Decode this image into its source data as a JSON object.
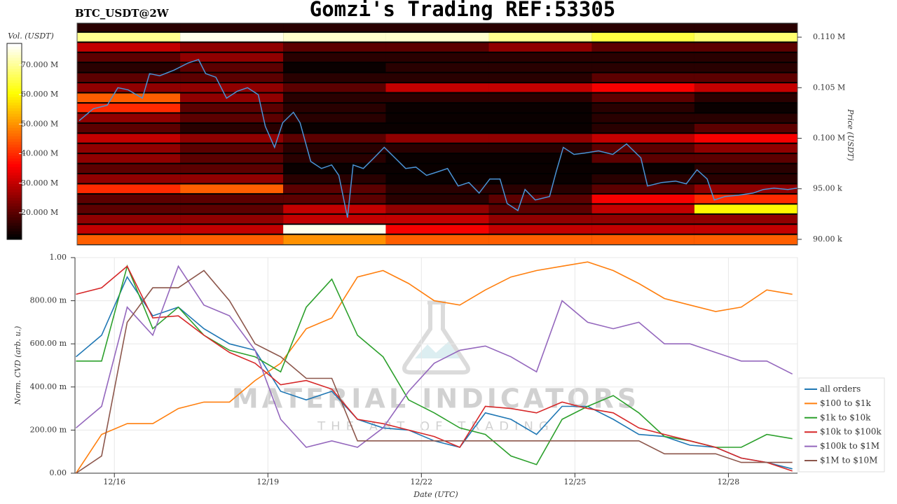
{
  "chart_data": [
    {
      "type": "heatmap",
      "title": "Gomzi's Trading REF:53305",
      "subtitle": "BTC_USDT@2W",
      "ylabel": "Price (USDT)",
      "xlim": [
        15.23,
        29.35
      ],
      "ylim": [
        89440,
        111390
      ],
      "yticks": [
        {
          "value": 90000,
          "label": "90.00 k"
        },
        {
          "value": 95000,
          "label": "95.00 k"
        },
        {
          "value": 100000,
          "label": "0.100 M"
        },
        {
          "value": 105000,
          "label": "0.105 M"
        },
        {
          "value": 110000,
          "label": "0.110 M"
        }
      ],
      "colormap": "hot",
      "colorbar": {
        "label": "Vol. (USDT)",
        "lim": [
          11000000,
          77300000
        ],
        "ticks": [
          {
            "value": 20000000,
            "label": "20.000 M"
          },
          {
            "value": 30000000,
            "label": "30.000 M"
          },
          {
            "value": 40000000,
            "label": "40.000 M"
          },
          {
            "value": 50000000,
            "label": "50.000 M"
          },
          {
            "value": 60000000,
            "label": "60.000 M"
          },
          {
            "value": 70000000,
            "label": "70.000 M"
          }
        ]
      },
      "x_bins": [
        15.23,
        17.25,
        19.27,
        21.28,
        23.3,
        25.32,
        27.33,
        29.35
      ],
      "y_bins": [
        89440,
        90500,
        91500,
        92500,
        93500,
        94500,
        95500,
        96500,
        97500,
        98500,
        99500,
        100500,
        101500,
        102500,
        103500,
        104500,
        105500,
        106500,
        107500,
        108500,
        109500,
        110500,
        111390
      ],
      "values": [
        [
          45000000,
          45000000,
          50000000,
          45000000,
          45000000,
          45000000,
          45000000
        ],
        [
          30000000,
          30000000,
          76000000,
          35000000,
          30000000,
          30000000,
          30000000
        ],
        [
          25000000,
          25000000,
          30000000,
          30000000,
          25000000,
          25000000,
          25000000
        ],
        [
          20000000,
          20000000,
          30000000,
          25000000,
          20000000,
          30000000,
          60000000
        ],
        [
          20000000,
          20000000,
          20000000,
          15000000,
          20000000,
          35000000,
          40000000
        ],
        [
          40000000,
          45000000,
          20000000,
          15000000,
          15000000,
          20000000,
          25000000
        ],
        [
          25000000,
          25000000,
          15000000,
          12000000,
          12000000,
          15000000,
          15000000
        ],
        [
          20000000,
          20000000,
          12000000,
          12000000,
          12000000,
          12000000,
          15000000
        ],
        [
          25000000,
          20000000,
          15000000,
          12000000,
          12000000,
          20000000,
          20000000
        ],
        [
          25000000,
          20000000,
          15000000,
          15000000,
          15000000,
          20000000,
          25000000
        ],
        [
          30000000,
          25000000,
          20000000,
          25000000,
          25000000,
          30000000,
          35000000
        ],
        [
          20000000,
          15000000,
          12000000,
          12000000,
          12000000,
          15000000,
          20000000
        ],
        [
          25000000,
          20000000,
          15000000,
          12000000,
          12000000,
          15000000,
          15000000
        ],
        [
          40000000,
          20000000,
          15000000,
          12000000,
          12000000,
          15000000,
          12000000
        ],
        [
          45000000,
          25000000,
          15000000,
          15000000,
          15000000,
          20000000,
          15000000
        ],
        [
          25000000,
          25000000,
          20000000,
          30000000,
          30000000,
          35000000,
          30000000
        ],
        [
          20000000,
          20000000,
          15000000,
          15000000,
          15000000,
          20000000,
          20000000
        ],
        [
          15000000,
          20000000,
          12000000,
          15000000,
          15000000,
          15000000,
          15000000
        ],
        [
          20000000,
          25000000,
          15000000,
          15000000,
          15000000,
          15000000,
          15000000
        ],
        [
          30000000,
          25000000,
          20000000,
          20000000,
          25000000,
          20000000,
          20000000
        ],
        [
          70000000,
          76000000,
          74000000,
          74000000,
          70000000,
          65000000,
          68000000
        ],
        [
          15000000,
          15000000,
          15000000,
          15000000,
          15000000,
          15000000,
          15000000
        ]
      ],
      "price_line": {
        "color": "#4a93d6",
        "x": [
          15.27,
          15.55,
          15.82,
          16.03,
          16.23,
          16.51,
          16.65,
          16.85,
          17.13,
          17.4,
          17.61,
          17.75,
          17.95,
          18.16,
          18.37,
          18.57,
          18.78,
          18.92,
          19.1,
          19.26,
          19.47,
          19.6,
          19.81,
          20.02,
          20.22,
          20.36,
          20.53,
          20.64,
          20.84,
          21.05,
          21.25,
          21.46,
          21.67,
          21.87,
          22.08,
          22.29,
          22.49,
          22.7,
          22.91,
          23.11,
          23.32,
          23.52,
          23.66,
          23.87,
          24.01,
          24.21,
          24.49,
          24.62,
          24.76,
          24.97,
          25.18,
          25.45,
          25.73,
          26.0,
          26.28,
          26.41,
          26.69,
          26.96,
          27.17,
          27.38,
          27.58,
          27.72,
          27.93,
          28.2,
          28.48,
          28.68,
          28.89,
          29.16,
          29.34
        ],
        "values": [
          101740,
          102920,
          103260,
          105000,
          104790,
          103960,
          106390,
          106180,
          106740,
          107430,
          107780,
          106390,
          106040,
          103960,
          104650,
          105000,
          104310,
          101180,
          99100,
          101530,
          102570,
          101530,
          97710,
          97010,
          97360,
          96320,
          92150,
          97360,
          97010,
          98060,
          99100,
          98060,
          97010,
          97150,
          96320,
          96670,
          97010,
          95280,
          95620,
          94580,
          95970,
          95970,
          93540,
          92850,
          94930,
          93890,
          94240,
          96670,
          99100,
          98400,
          98540,
          98750,
          98400,
          99440,
          98060,
          95280,
          95620,
          95760,
          95490,
          96880,
          95970,
          93890,
          94240,
          94380,
          94580,
          94930,
          95070,
          94930,
          95070
        ]
      }
    },
    {
      "type": "line",
      "xlabel": "Date (UTC)",
      "ylabel": "Norm. CVD (arb. u.)",
      "grid": true,
      "legend": "right",
      "annotations": [
        "MATERIAL INDICATORS",
        "THE ART OF TRADING"
      ],
      "xlim": [
        15.23,
        29.35
      ],
      "ylim": [
        0,
        1
      ],
      "xticks": [
        {
          "value": 16,
          "label": "12/16"
        },
        {
          "value": 19,
          "label": "12/19"
        },
        {
          "value": 22,
          "label": "12/22"
        },
        {
          "value": 25,
          "label": "12/25"
        },
        {
          "value": 28,
          "label": "12/28"
        }
      ],
      "yticks": [
        {
          "value": 0,
          "label": "0.00"
        },
        {
          "value": 0.2,
          "label": "200.00 m"
        },
        {
          "value": 0.4,
          "label": "400.00 m"
        },
        {
          "value": 0.6,
          "label": "600.00 m"
        },
        {
          "value": 0.8,
          "label": "800.00 m"
        },
        {
          "value": 1,
          "label": "1.00"
        }
      ],
      "x": [
        15.25,
        15.75,
        16.25,
        16.75,
        17.25,
        17.75,
        18.25,
        18.75,
        19.25,
        19.75,
        20.25,
        20.75,
        21.25,
        21.75,
        22.25,
        22.75,
        23.25,
        23.75,
        24.25,
        24.75,
        25.25,
        25.75,
        26.25,
        26.75,
        27.25,
        27.75,
        28.25,
        28.75,
        29.25
      ],
      "series": [
        {
          "name": "all orders",
          "color": "#1f77b4",
          "values": [
            0.54,
            0.64,
            0.91,
            0.73,
            0.77,
            0.67,
            0.6,
            0.57,
            0.38,
            0.34,
            0.38,
            0.25,
            0.21,
            0.2,
            0.15,
            0.12,
            0.28,
            0.25,
            0.18,
            0.31,
            0.31,
            0.25,
            0.18,
            0.17,
            0.13,
            0.12,
            0.07,
            0.05,
            0.02
          ]
        },
        {
          "name": "$100 to $1k",
          "color": "#ff7f0e",
          "values": [
            0,
            0.18,
            0.23,
            0.23,
            0.3,
            0.33,
            0.33,
            0.43,
            0.51,
            0.67,
            0.72,
            0.91,
            0.94,
            0.88,
            0.8,
            0.78,
            0.85,
            0.91,
            0.94,
            0.96,
            0.98,
            0.94,
            0.88,
            0.81,
            0.78,
            0.75,
            0.77,
            0.85,
            0.83
          ]
        },
        {
          "name": "$1k to $10k",
          "color": "#2ca02c",
          "values": [
            0.52,
            0.52,
            0.96,
            0.67,
            0.77,
            0.64,
            0.57,
            0.54,
            0.47,
            0.77,
            0.9,
            0.64,
            0.54,
            0.34,
            0.28,
            0.21,
            0.18,
            0.08,
            0.04,
            0.25,
            0.31,
            0.36,
            0.28,
            0.17,
            0.15,
            0.12,
            0.12,
            0.18,
            0.16
          ]
        },
        {
          "name": "$10k to $100k",
          "color": "#d62728",
          "values": [
            0.83,
            0.86,
            0.96,
            0.72,
            0.73,
            0.64,
            0.56,
            0.51,
            0.41,
            0.43,
            0.39,
            0.25,
            0.23,
            0.2,
            0.17,
            0.12,
            0.31,
            0.3,
            0.28,
            0.33,
            0.3,
            0.28,
            0.21,
            0.18,
            0.15,
            0.12,
            0.07,
            0.05,
            0.01
          ]
        },
        {
          "name": "$100k to $1M",
          "color": "#9467bd",
          "values": [
            0.21,
            0.31,
            0.77,
            0.64,
            0.96,
            0.78,
            0.73,
            0.57,
            0.25,
            0.12,
            0.15,
            0.12,
            0.21,
            0.38,
            0.51,
            0.57,
            0.59,
            0.54,
            0.47,
            0.8,
            0.7,
            0.67,
            0.7,
            0.6,
            0.6,
            0.56,
            0.52,
            0.52,
            0.46
          ]
        },
        {
          "name": "$1M to $10M",
          "color": "#8c564b",
          "values": [
            0,
            0.08,
            0.7,
            0.86,
            0.86,
            0.94,
            0.8,
            0.6,
            0.54,
            0.44,
            0.44,
            0.15,
            0.15,
            0.15,
            0.15,
            0.15,
            0.15,
            0.15,
            0.15,
            0.15,
            0.15,
            0.15,
            0.15,
            0.09,
            0.09,
            0.09,
            0.05,
            0.05,
            0.05
          ]
        }
      ]
    }
  ]
}
